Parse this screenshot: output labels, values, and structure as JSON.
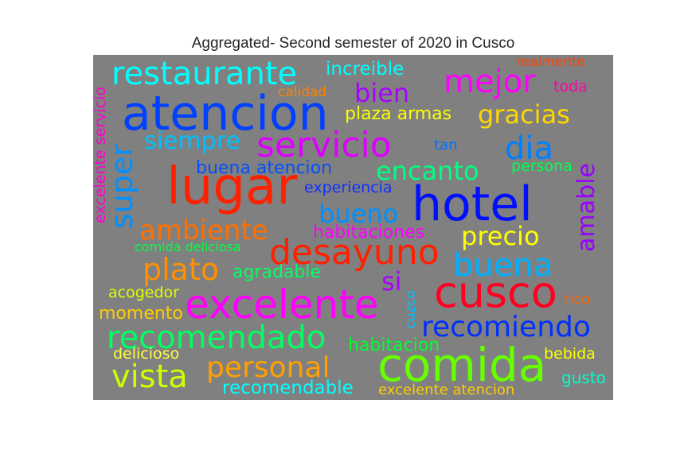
{
  "title": "Aggregated- Second semester of 2020 in Cusco",
  "words": [
    {
      "text": "restaurante",
      "color": "#00ffff"
    },
    {
      "text": "increible",
      "color": "#00ffff"
    },
    {
      "text": "realmente",
      "color": "#ff4500"
    },
    {
      "text": "mejor",
      "color": "#ff00ff"
    },
    {
      "text": "toda",
      "color": "#ff00aa"
    },
    {
      "text": "calidad",
      "color": "#ff8000"
    },
    {
      "text": "bien",
      "color": "#aa00ff"
    },
    {
      "text": "atencion",
      "color": "#0040ff"
    },
    {
      "text": "plaza armas",
      "color": "#ffff00"
    },
    {
      "text": "gracias",
      "color": "#ffd700"
    },
    {
      "text": "excelente servicio",
      "color": "#ff00cc"
    },
    {
      "text": "siempre",
      "color": "#00bfff"
    },
    {
      "text": "servicio",
      "color": "#dd00ff"
    },
    {
      "text": "tan",
      "color": "#0070ff"
    },
    {
      "text": "dia",
      "color": "#0080ff"
    },
    {
      "text": "super",
      "color": "#0090ff"
    },
    {
      "text": "buena atencion",
      "color": "#0050ff"
    },
    {
      "text": "encanto",
      "color": "#00ff80"
    },
    {
      "text": "persona",
      "color": "#00ff50"
    },
    {
      "text": "amable",
      "color": "#9900ff"
    },
    {
      "text": "lugar",
      "color": "#ff2000"
    },
    {
      "text": "experiencia",
      "color": "#1030ff"
    },
    {
      "text": "hotel",
      "color": "#0010ff"
    },
    {
      "text": "bueno",
      "color": "#0090ff"
    },
    {
      "text": "ambiente",
      "color": "#ff7000"
    },
    {
      "text": "habitaciones",
      "color": "#ff00ff"
    },
    {
      "text": "precio",
      "color": "#ffff00"
    },
    {
      "text": "desayuno",
      "color": "#ff2000"
    },
    {
      "text": "comida deliciosa",
      "color": "#00ff40"
    },
    {
      "text": "buena",
      "color": "#00b0ff"
    },
    {
      "text": "plato",
      "color": "#ff9000"
    },
    {
      "text": "agradable",
      "color": "#00ff60"
    },
    {
      "text": "si",
      "color": "#aa00ff"
    },
    {
      "text": "cusco",
      "color": "#ff0020"
    },
    {
      "text": "acogedor",
      "color": "#ddff00"
    },
    {
      "text": "excelente",
      "color": "#ff00ff"
    },
    {
      "text": "rico",
      "color": "#ff6000"
    },
    {
      "text": "momento",
      "color": "#ffcc00"
    },
    {
      "text": "cuzco",
      "color": "#00bfff"
    },
    {
      "text": "recomiendo",
      "color": "#0030ff"
    },
    {
      "text": "recomendado",
      "color": "#00ff60"
    },
    {
      "text": "habitacion",
      "color": "#00ff30"
    },
    {
      "text": "delicioso",
      "color": "#ffff40"
    },
    {
      "text": "comida",
      "color": "#66ff00"
    },
    {
      "text": "bebida",
      "color": "#ffff00"
    },
    {
      "text": "vista",
      "color": "#ccff00"
    },
    {
      "text": "personal",
      "color": "#ffa000"
    },
    {
      "text": "gusto",
      "color": "#00ffcc"
    },
    {
      "text": "recomendable",
      "color": "#00ffff"
    },
    {
      "text": "excelente atencion",
      "color": "#ffcc00"
    }
  ]
}
